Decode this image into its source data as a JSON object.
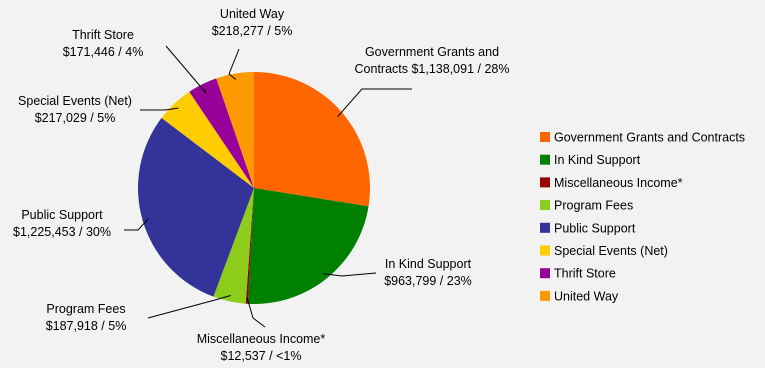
{
  "chart_data": {
    "type": "pie",
    "title": "",
    "slices": [
      {
        "name": "Government Grants and Contracts",
        "value": 1138091,
        "amount": "$1,138,091",
        "percent_label": "28%",
        "color": "#ff6600"
      },
      {
        "name": "In Kind Support",
        "value": 963799,
        "amount": "$963,799",
        "percent_label": "23%",
        "color": "#008000"
      },
      {
        "name": "Miscellaneous Income*",
        "value": 12537,
        "amount": "$12,537",
        "percent_label": "<1%",
        "color": "#990000"
      },
      {
        "name": "Program Fees",
        "value": 187918,
        "amount": "$187,918",
        "percent_label": "5%",
        "color": "#8ccc1a"
      },
      {
        "name": "Public Support",
        "value": 1225453,
        "amount": "$1,225,453",
        "percent_label": "30%",
        "color": "#333399"
      },
      {
        "name": "Special Events (Net)",
        "value": 217029,
        "amount": "$217,029",
        "percent_label": "5%",
        "color": "#ffcc00"
      },
      {
        "name": "Thrift Store",
        "value": 171446,
        "amount": "$171,446",
        "percent_label": "4%",
        "color": "#990099"
      },
      {
        "name": "United Way",
        "value": 218277,
        "amount": "$218,277",
        "percent_label": "5%",
        "color": "#ff9900"
      }
    ],
    "start_angle": "12 o'clock",
    "direction": "clockwise",
    "legend_placement": "right"
  }
}
